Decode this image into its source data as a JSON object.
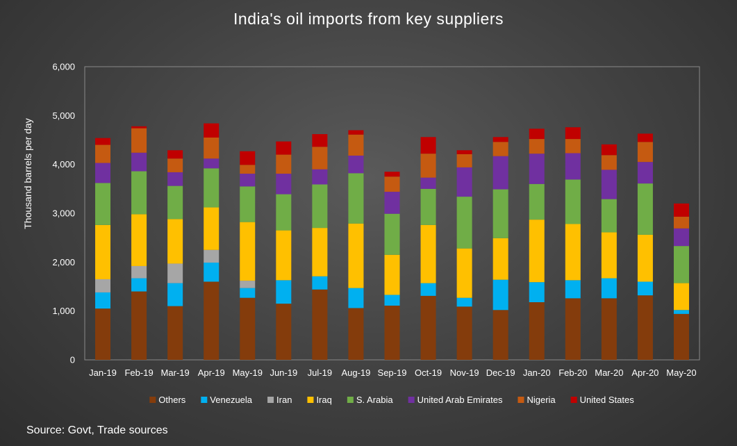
{
  "chart_data": {
    "type": "bar",
    "stacked": true,
    "title": "India's oil imports from key suppliers",
    "ylabel": "Thousand barrels per day",
    "xlabel": "",
    "ylim": [
      0,
      6000
    ],
    "yticks": [
      "0",
      "1,000",
      "2,000",
      "3,000",
      "4,000",
      "5,000",
      "6,000"
    ],
    "ytick_values": [
      0,
      1000,
      2000,
      3000,
      4000,
      5000,
      6000
    ],
    "grid": false,
    "legend_position": "bottom",
    "categories": [
      "Jan-19",
      "Feb-19",
      "Mar-19",
      "Apr-19",
      "May-19",
      "Jun-19",
      "Jul-19",
      "Aug-19",
      "Sep-19",
      "Oct-19",
      "Nov-19",
      "Dec-19",
      "Jan-20",
      "Feb-20",
      "Mar-20",
      "Apr-20",
      "May-20"
    ],
    "series": [
      {
        "name": "Others",
        "color": "#843c0c",
        "values": [
          1050,
          1400,
          1100,
          1600,
          1270,
          1150,
          1440,
          1060,
          1110,
          1310,
          1090,
          1020,
          1180,
          1260,
          1260,
          1320,
          940
        ]
      },
      {
        "name": "Venezuela",
        "color": "#00b0f0",
        "values": [
          330,
          270,
          470,
          390,
          200,
          480,
          270,
          410,
          220,
          260,
          180,
          620,
          410,
          370,
          410,
          280,
          80
        ]
      },
      {
        "name": "Iran",
        "color": "#a6a6a6",
        "values": [
          270,
          250,
          400,
          260,
          150,
          0,
          0,
          0,
          0,
          0,
          0,
          0,
          0,
          0,
          0,
          0,
          0
        ]
      },
      {
        "name": "Iraq",
        "color": "#ffc000",
        "values": [
          1110,
          1060,
          910,
          870,
          1200,
          1020,
          990,
          1320,
          820,
          1190,
          1010,
          850,
          1280,
          1150,
          940,
          960,
          550
        ]
      },
      {
        "name": "S. Arabia",
        "color": "#70ad47",
        "values": [
          860,
          880,
          680,
          800,
          730,
          740,
          890,
          1030,
          840,
          740,
          1060,
          1000,
          730,
          910,
          680,
          1050,
          760
        ]
      },
      {
        "name": "United Arab Emirates",
        "color": "#7030a0",
        "values": [
          410,
          380,
          280,
          200,
          260,
          420,
          310,
          360,
          450,
          230,
          600,
          680,
          620,
          540,
          600,
          440,
          360
        ]
      },
      {
        "name": "Nigeria",
        "color": "#c55a11",
        "values": [
          370,
          500,
          280,
          430,
          180,
          390,
          460,
          430,
          310,
          490,
          270,
          290,
          300,
          290,
          300,
          410,
          240
        ]
      },
      {
        "name": "United States",
        "color": "#c00000",
        "values": [
          140,
          40,
          170,
          290,
          280,
          270,
          260,
          90,
          100,
          340,
          80,
          100,
          210,
          240,
          220,
          170,
          270
        ]
      }
    ]
  },
  "source": "Source: Govt, Trade sources"
}
